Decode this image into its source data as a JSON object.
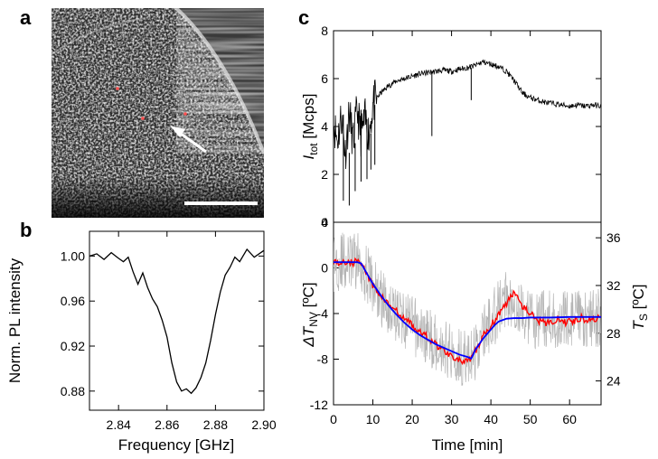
{
  "panel_letters": {
    "a": "a",
    "b": "b",
    "c": "c"
  },
  "panel_a": {
    "description_free": true
  },
  "chart_data": [
    {
      "panel": "b",
      "type": "line",
      "xlabel": "Frequency [GHz]",
      "ylabel": "Norm. PL intensity",
      "xlim": [
        2.828,
        2.9
      ],
      "ylim": [
        0.863,
        1.022
      ],
      "xticks": [
        "2.84",
        "2.86",
        "2.88",
        "2.90"
      ],
      "xtick_values": [
        2.84,
        2.86,
        2.88,
        2.9
      ],
      "yticks": [
        "0.88",
        "0.92",
        "0.96",
        "1.00"
      ],
      "ytick_values": [
        0.88,
        0.92,
        0.96,
        1.0
      ],
      "series": [
        {
          "color": "#000000",
          "x": [
            2.828,
            2.831,
            2.834,
            2.837,
            2.84,
            2.842,
            2.844,
            2.846,
            2.848,
            2.85,
            2.852,
            2.854,
            2.856,
            2.858,
            2.86,
            2.862,
            2.864,
            2.866,
            2.868,
            2.87,
            2.872,
            2.874,
            2.876,
            2.878,
            2.88,
            2.882,
            2.884,
            2.886,
            2.888,
            2.89,
            2.893,
            2.896,
            2.9
          ],
          "y": [
            1.0,
            1.002,
            0.997,
            1.003,
            0.998,
            0.995,
            0.999,
            0.986,
            0.975,
            0.985,
            0.972,
            0.962,
            0.955,
            0.943,
            0.928,
            0.905,
            0.888,
            0.88,
            0.882,
            0.878,
            0.883,
            0.892,
            0.905,
            0.925,
            0.948,
            0.968,
            0.983,
            0.99,
            0.999,
            0.995,
            1.006,
            0.999,
            1.005
          ]
        }
      ]
    },
    {
      "panel": "c-top",
      "type": "line",
      "xlabel": "",
      "ylabel_main": "I",
      "ylabel_sub": "tot",
      "ylabel_unit": " [Mcps]",
      "xlim": [
        0,
        68
      ],
      "ylim": [
        0,
        8
      ],
      "yticks": [
        "0",
        "2",
        "4",
        "6",
        "8"
      ],
      "ytick_values": [
        0,
        2,
        4,
        6,
        8
      ],
      "xtick_values": [
        0,
        10,
        20,
        30,
        40,
        50,
        60
      ],
      "series": [
        {
          "color": "#000000",
          "x": [
            0,
            1,
            2,
            3,
            4,
            5,
            6,
            7,
            8,
            9,
            10,
            11,
            12,
            14,
            16,
            18,
            20,
            22,
            24,
            26,
            28,
            30,
            32,
            34,
            35,
            36,
            38,
            40,
            42,
            44,
            46,
            48,
            50,
            52,
            54,
            56,
            58,
            60,
            62,
            64,
            66,
            68
          ],
          "y": [
            4.2,
            3.4,
            4.5,
            2.9,
            4.6,
            3.3,
            4.7,
            3.6,
            4.3,
            3.7,
            4.9,
            5.2,
            5.4,
            5.7,
            5.9,
            6.0,
            6.1,
            6.2,
            6.25,
            6.3,
            6.35,
            6.3,
            6.4,
            6.45,
            6.5,
            6.55,
            6.7,
            6.6,
            6.5,
            6.3,
            5.9,
            5.4,
            5.2,
            5.1,
            5.0,
            4.95,
            4.9,
            4.85,
            4.9,
            4.85,
            4.9,
            4.85
          ],
          "spikes": [
            [
              2.5,
              0.9
            ],
            [
              4.0,
              0.7
            ],
            [
              5.5,
              1.3
            ],
            [
              7.0,
              1.7
            ],
            [
              8.5,
              1.8
            ],
            [
              9.5,
              2.2
            ],
            [
              10.5,
              2.4
            ],
            [
              25.0,
              3.6
            ],
            [
              35.0,
              5.1
            ]
          ]
        }
      ]
    },
    {
      "panel": "c-bottom",
      "type": "line",
      "xlabel": "Time [min]",
      "ylabel_left": "ΔT",
      "ylabel_left_sub": "NV",
      "ylabel_left_unit": " [ºC]",
      "ylabel_right": "T",
      "ylabel_right_sub": "S",
      "ylabel_right_unit": " [ºC]",
      "xlim": [
        0,
        68
      ],
      "ylim_left": [
        -12,
        4
      ],
      "ylim_right": [
        22,
        37.3
      ],
      "xticks": [
        "0",
        "10",
        "20",
        "30",
        "40",
        "50",
        "60"
      ],
      "xtick_values": [
        0,
        10,
        20,
        30,
        40,
        50,
        60
      ],
      "yticks_left": [
        "-12",
        "-8",
        "-4",
        "0",
        "4"
      ],
      "ytick_values_left": [
        -12,
        -8,
        -4,
        0,
        4
      ],
      "yticks_right": [
        "24",
        "28",
        "32",
        "36"
      ],
      "ytick_values_right": [
        24,
        28,
        32,
        36
      ],
      "series": [
        {
          "role": "raw",
          "color": "#b4b4b4",
          "noise_amplitude": 2.6,
          "x": [
            0,
            2,
            4,
            6,
            7,
            8,
            10,
            12,
            14,
            16,
            18,
            20,
            22,
            24,
            26,
            28,
            30,
            32,
            34,
            35,
            36,
            38,
            40,
            42,
            44,
            46,
            48,
            50,
            52,
            54,
            56,
            58,
            60,
            62,
            64,
            66,
            68
          ],
          "y": [
            0.5,
            0.6,
            0.4,
            0.6,
            0.5,
            -0.3,
            -1.5,
            -2.6,
            -3.3,
            -4.0,
            -4.5,
            -5.0,
            -5.6,
            -6.0,
            -6.5,
            -7.0,
            -7.3,
            -7.7,
            -8.0,
            -8.1,
            -7.5,
            -5.8,
            -4.8,
            -3.6,
            -2.6,
            -2.8,
            -3.9,
            -4.5,
            -4.6,
            -4.4,
            -4.7,
            -4.4,
            -4.5,
            -4.6,
            -4.4,
            -4.5,
            -4.4
          ]
        },
        {
          "role": "smoothed",
          "color": "#ff0000",
          "x": [
            0,
            1,
            2,
            3,
            4,
            5,
            6,
            7,
            8,
            9,
            10,
            11,
            12,
            13,
            14,
            15,
            16,
            17,
            18,
            19,
            20,
            21,
            22,
            23,
            24,
            25,
            26,
            27,
            28,
            29,
            30,
            31,
            32,
            33,
            34,
            35,
            36,
            37,
            38,
            39,
            40,
            41,
            42,
            43,
            44,
            45,
            46,
            47,
            48,
            49,
            50,
            51,
            52,
            53,
            54,
            55,
            56,
            57,
            58,
            59,
            60,
            61,
            62,
            63,
            64,
            65,
            66,
            67,
            68
          ],
          "y": [
            0.6,
            0.5,
            0.4,
            0.5,
            0.6,
            0.4,
            0.7,
            0.5,
            -0.2,
            -0.9,
            -1.6,
            -2.0,
            -2.4,
            -2.8,
            -3.2,
            -3.5,
            -3.8,
            -4.3,
            -4.5,
            -4.6,
            -5.0,
            -5.4,
            -5.7,
            -5.8,
            -6.1,
            -6.4,
            -6.7,
            -7.0,
            -7.2,
            -7.5,
            -7.6,
            -7.9,
            -8.1,
            -8.3,
            -8.2,
            -8.0,
            -7.3,
            -6.8,
            -6.0,
            -5.5,
            -5.0,
            -4.6,
            -4.0,
            -3.5,
            -3.2,
            -2.5,
            -2.0,
            -2.6,
            -3.3,
            -3.6,
            -4.0,
            -4.3,
            -4.7,
            -4.5,
            -4.8,
            -4.6,
            -4.9,
            -4.5,
            -4.7,
            -4.8,
            -4.4,
            -4.7,
            -4.5,
            -4.3,
            -4.6,
            -4.4,
            -4.5,
            -4.4,
            -4.5
          ]
        },
        {
          "role": "sensor",
          "color": "#0000ff",
          "x": [
            0,
            2,
            4,
            6,
            7,
            8,
            10,
            12,
            14,
            16,
            18,
            20,
            22,
            24,
            26,
            28,
            30,
            32,
            34,
            35,
            35.5,
            36,
            37,
            38,
            39,
            40,
            41,
            42,
            44,
            46,
            48,
            50,
            55,
            60,
            65,
            68
          ],
          "y": [
            0.5,
            0.5,
            0.5,
            0.5,
            0.4,
            -0.2,
            -1.4,
            -2.4,
            -3.3,
            -4.1,
            -4.8,
            -5.4,
            -5.9,
            -6.3,
            -6.7,
            -7.0,
            -7.3,
            -7.6,
            -7.8,
            -7.95,
            -7.6,
            -7.2,
            -6.7,
            -6.2,
            -5.8,
            -5.4,
            -5.0,
            -4.7,
            -4.45,
            -4.4,
            -4.4,
            -4.35,
            -4.35,
            -4.3,
            -4.3,
            -4.3
          ]
        }
      ]
    }
  ]
}
